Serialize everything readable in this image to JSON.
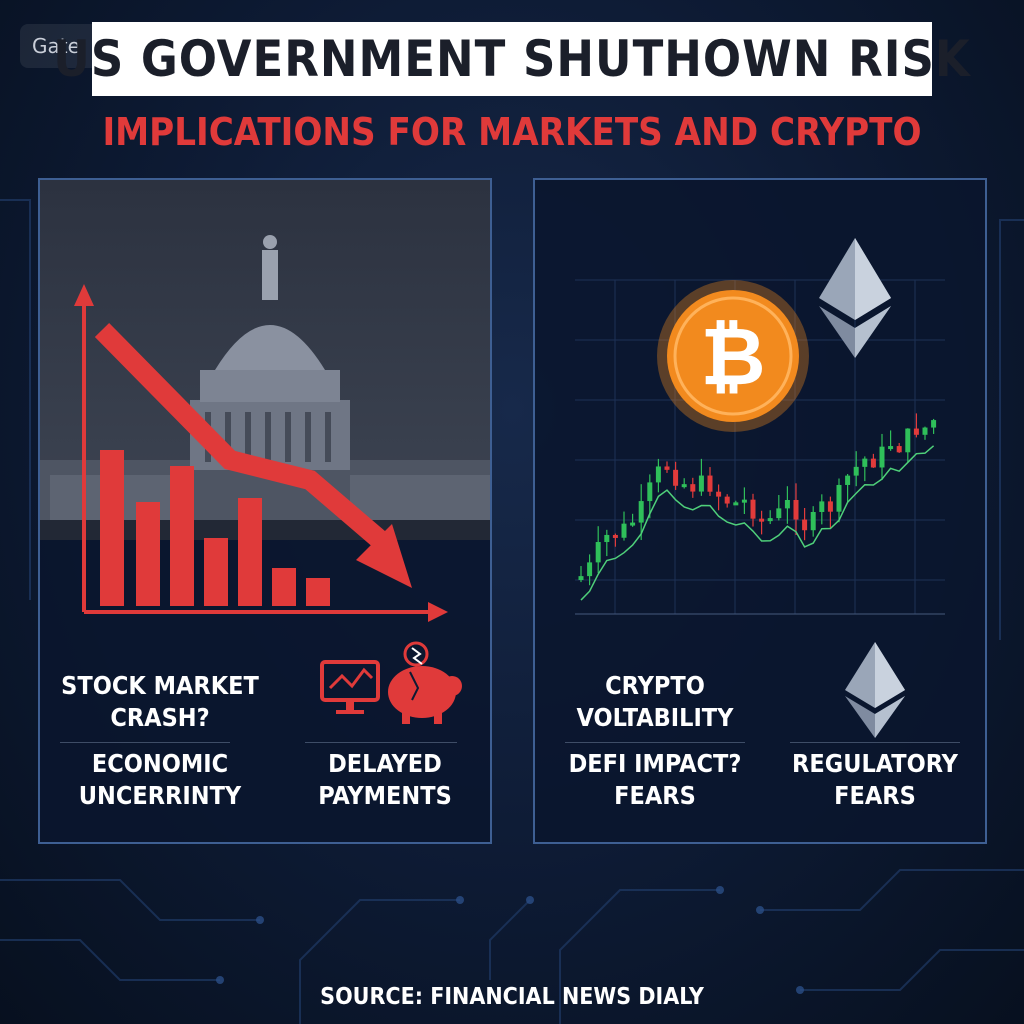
{
  "watermark": "Gate",
  "header": {
    "title": "US GOVERNMENT SHUTHOWN RISK",
    "subtitle": "IMPLICATIONS FOR MARKETS AND CRYPTO"
  },
  "left_panel": {
    "label_stock": "STOCK MARKET",
    "label_crash": "CRASH?",
    "label_economic": "ECONOMIC",
    "label_uncertainty": "UNCERRINTY",
    "label_delayed": "DELAYED",
    "label_payments": "PAYMENTS",
    "icons": [
      "capitol-building-icon",
      "bar-chart-icon",
      "down-trend-arrow-icon",
      "monitor-chart-icon",
      "broken-piggy-bank-icon"
    ]
  },
  "right_panel": {
    "label_crypto": "CRYPTO",
    "label_volatility": "VOLTABILITY",
    "label_defi": "DEFI IMPACT?",
    "label_defi_fears": "FEARS",
    "label_regulatory": "REGULATORY",
    "label_regulatory_fears": "FEARS",
    "icons": [
      "bitcoin-icon",
      "ethereum-icon",
      "candlestick-chart-icon"
    ]
  },
  "footer": {
    "source": "SOURCE: FINANCIAL NEWS DIALY"
  },
  "colors": {
    "accent_red": "#e03a3a",
    "panel_border": "#3e5f93",
    "candle_up": "#2fbf5a",
    "candle_down": "#e23b3b",
    "bitcoin_orange": "#f28a1e"
  }
}
